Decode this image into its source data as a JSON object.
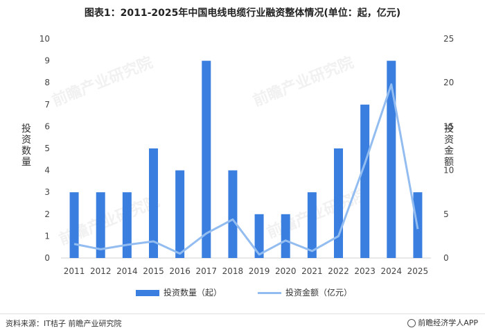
{
  "title": "图表1：2011-2025年中国电线电缆行业融资整体情况(单位：起，亿元)",
  "watermark": "前瞻产业研究院",
  "source": "资料来源：IT桔子 前瞻产业研究院",
  "brand": "前瞻经济学人APP",
  "colors": {
    "bar": "#3a7fdf",
    "line": "#93bdf1"
  },
  "chart_data": {
    "type": "bar",
    "categories": [
      "2011",
      "2012",
      "2014",
      "2015",
      "2016",
      "2017",
      "2018",
      "2019",
      "2020",
      "2021",
      "2022",
      "2023",
      "2024",
      "2025"
    ],
    "series": [
      {
        "name": "投资数量（起）",
        "type": "bar",
        "axis": "left",
        "values": [
          3,
          3,
          3,
          5,
          4,
          9,
          4,
          2,
          2,
          3,
          5,
          7,
          9,
          3
        ]
      },
      {
        "name": "投资金额（亿元）",
        "type": "line",
        "axis": "right",
        "values": [
          1.6,
          1.0,
          1.5,
          1.9,
          0.5,
          2.8,
          4.4,
          0.4,
          2.0,
          0.8,
          2.5,
          10.8,
          19.8,
          3.3
        ]
      }
    ],
    "ylabel": "投资数量",
    "ylabel_right": "投资金额",
    "ylim": [
      0,
      10
    ],
    "ylim_right": [
      0,
      25
    ],
    "yticks": [
      "0",
      "1",
      "2",
      "3",
      "4",
      "5",
      "6",
      "7",
      "8",
      "9",
      "10"
    ],
    "yticks_right": [
      "0",
      "5",
      "10",
      "15",
      "20",
      "25"
    ],
    "grid": false,
    "legend": "bottom"
  }
}
